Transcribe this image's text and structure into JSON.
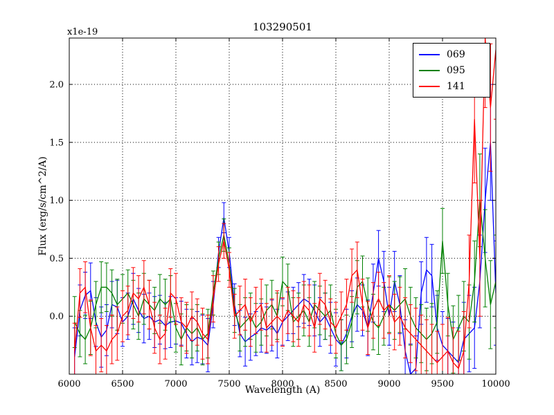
{
  "title": "103290501",
  "offset_label": "x1e-19",
  "axes": {
    "xlabel": "Wavelength (A)",
    "ylabel": "Flux (erg/s/cm^2/A)",
    "xlim": [
      6000,
      10000
    ],
    "ylim": [
      -0.5,
      2.4
    ],
    "xticks": [
      6000,
      6500,
      7000,
      7500,
      8000,
      8500,
      9000,
      9500,
      10000
    ],
    "xtick_labels": [
      "6000",
      "6500",
      "7000",
      "7500",
      "8000",
      "8500",
      "9000",
      "9500",
      "10000"
    ],
    "ytick_values": [
      0.0,
      0.5,
      1.0,
      1.5,
      2.0
    ],
    "ytick_labels": [
      "0.0",
      "0.5",
      "1.0",
      "1.5",
      "2.0"
    ]
  },
  "legend": {
    "position": "upper right",
    "entries": [
      {
        "label": "069",
        "color": "#0000ff"
      },
      {
        "label": "095",
        "color": "#008000"
      },
      {
        "label": "141",
        "color": "#ff0000"
      }
    ]
  },
  "chart_data": {
    "type": "line",
    "title": "103290501",
    "xlabel": "Wavelength (A)",
    "ylabel": "Flux (erg/s/cm^2/A)",
    "y_scale_factor": "1e-19",
    "xlim": [
      6000,
      10000
    ],
    "ylim": [
      -0.5,
      2.4
    ],
    "grid": true,
    "grid_style": "dotted",
    "error_bars": true,
    "legend_position": "upper right",
    "x": [
      6050,
      6100,
      6150,
      6200,
      6250,
      6300,
      6350,
      6400,
      6450,
      6500,
      6550,
      6600,
      6650,
      6700,
      6750,
      6800,
      6850,
      6900,
      6950,
      7000,
      7050,
      7100,
      7150,
      7200,
      7250,
      7300,
      7350,
      7400,
      7450,
      7500,
      7550,
      7600,
      7650,
      7700,
      7750,
      7800,
      7850,
      7900,
      7950,
      8000,
      8050,
      8100,
      8150,
      8200,
      8250,
      8300,
      8350,
      8400,
      8450,
      8500,
      8550,
      8600,
      8650,
      8700,
      8750,
      8800,
      8850,
      8900,
      8950,
      9000,
      9050,
      9100,
      9150,
      9200,
      9250,
      9300,
      9350,
      9400,
      9450,
      9500,
      9550,
      9600,
      9650,
      9700,
      9750,
      9800,
      9850,
      9900,
      9950,
      10000
    ],
    "series": [
      {
        "name": "069",
        "color": "#0000ff",
        "values": [
          -0.35,
          0.05,
          0.18,
          0.22,
          -0.05,
          -0.18,
          -0.12,
          0.1,
          0.08,
          -0.05,
          0.0,
          0.15,
          0.05,
          -0.02,
          0.0,
          -0.05,
          -0.03,
          -0.08,
          -0.05,
          -0.04,
          -0.06,
          -0.15,
          -0.22,
          -0.18,
          -0.2,
          -0.25,
          0.1,
          0.55,
          0.85,
          0.55,
          0.1,
          -0.15,
          -0.22,
          -0.18,
          -0.15,
          -0.1,
          -0.12,
          -0.08,
          -0.15,
          -0.05,
          0.0,
          0.05,
          0.1,
          0.15,
          0.12,
          0.05,
          -0.05,
          0.0,
          -0.1,
          -0.2,
          -0.25,
          -0.15,
          0.0,
          0.1,
          0.05,
          -0.1,
          0.2,
          0.5,
          0.3,
          0.0,
          0.3,
          0.1,
          -0.3,
          -0.5,
          -0.45,
          0.2,
          0.4,
          0.35,
          -0.1,
          -0.25,
          -0.3,
          -0.35,
          -0.4,
          -0.2,
          -0.15,
          -0.1,
          0.3,
          1.0,
          1.5,
          0.2
        ],
        "errors": [
          0.25,
          0.22,
          0.2,
          0.24,
          0.21,
          0.26,
          0.22,
          0.2,
          0.23,
          0.21,
          0.2,
          0.22,
          0.19,
          0.21,
          0.2,
          0.22,
          0.21,
          0.2,
          0.22,
          0.2,
          0.19,
          0.21,
          0.2,
          0.22,
          0.21,
          0.23,
          0.2,
          0.13,
          0.13,
          0.13,
          0.18,
          0.2,
          0.21,
          0.2,
          0.19,
          0.21,
          0.2,
          0.22,
          0.21,
          0.2,
          0.21,
          0.2,
          0.19,
          0.21,
          0.2,
          0.22,
          0.21,
          0.2,
          0.22,
          0.23,
          0.22,
          0.21,
          0.22,
          0.23,
          0.22,
          0.24,
          0.25,
          0.24,
          0.26,
          0.25,
          0.26,
          0.25,
          0.27,
          0.26,
          0.28,
          0.27,
          0.28,
          0.27,
          0.28,
          0.29,
          0.28,
          0.3,
          0.3,
          0.32,
          0.33,
          0.35,
          0.4,
          0.45,
          0.5,
          0.45
        ]
      },
      {
        "name": "095",
        "color": "#008000",
        "values": [
          -0.05,
          -0.15,
          -0.2,
          -0.1,
          0.1,
          0.25,
          0.25,
          0.2,
          0.1,
          0.15,
          0.2,
          0.1,
          0.0,
          0.15,
          0.1,
          0.05,
          0.15,
          0.1,
          0.15,
          -0.1,
          -0.2,
          -0.1,
          -0.15,
          -0.1,
          -0.2,
          -0.15,
          0.2,
          0.5,
          0.7,
          0.45,
          0.05,
          -0.1,
          -0.05,
          0.0,
          -0.1,
          -0.05,
          0.05,
          0.1,
          0.0,
          0.3,
          0.25,
          -0.05,
          0.0,
          0.05,
          -0.05,
          0.1,
          0.05,
          0.0,
          0.05,
          -0.15,
          -0.25,
          -0.2,
          -0.05,
          0.25,
          0.3,
          0.1,
          -0.05,
          -0.1,
          0.0,
          0.1,
          0.05,
          0.1,
          0.15,
          0.0,
          -0.1,
          -0.15,
          -0.2,
          -0.15,
          -0.05,
          0.65,
          0.1,
          -0.2,
          -0.1,
          0.0,
          -0.05,
          0.3,
          1.0,
          0.5,
          0.1,
          0.3
        ],
        "errors": [
          0.22,
          0.2,
          0.21,
          0.23,
          0.2,
          0.22,
          0.21,
          0.2,
          0.22,
          0.21,
          0.2,
          0.21,
          0.2,
          0.22,
          0.21,
          0.2,
          0.21,
          0.22,
          0.2,
          0.21,
          0.22,
          0.2,
          0.21,
          0.2,
          0.22,
          0.21,
          0.19,
          0.14,
          0.14,
          0.14,
          0.19,
          0.2,
          0.21,
          0.2,
          0.21,
          0.2,
          0.22,
          0.21,
          0.2,
          0.21,
          0.2,
          0.21,
          0.2,
          0.22,
          0.21,
          0.2,
          0.21,
          0.2,
          0.22,
          0.21,
          0.22,
          0.21,
          0.22,
          0.23,
          0.22,
          0.23,
          0.24,
          0.23,
          0.25,
          0.24,
          0.25,
          0.24,
          0.26,
          0.25,
          0.26,
          0.25,
          0.27,
          0.26,
          0.27,
          0.28,
          0.27,
          0.29,
          0.28,
          0.3,
          0.32,
          0.35,
          0.4,
          0.42,
          0.38,
          0.4
        ]
      },
      {
        "name": "141",
        "color": "#ff0000",
        "values": [
          -0.3,
          0.2,
          0.25,
          -0.1,
          -0.3,
          -0.25,
          -0.3,
          -0.2,
          -0.15,
          0.0,
          0.05,
          0.2,
          0.15,
          0.25,
          0.1,
          -0.1,
          -0.2,
          -0.15,
          0.2,
          0.15,
          -0.05,
          -0.1,
          0.0,
          -0.05,
          -0.15,
          -0.2,
          0.15,
          0.45,
          0.65,
          0.4,
          0.0,
          0.05,
          0.1,
          -0.05,
          0.05,
          0.1,
          -0.1,
          -0.05,
          0.0,
          -0.05,
          0.05,
          0.0,
          -0.05,
          0.1,
          0.05,
          -0.1,
          0.15,
          0.1,
          -0.05,
          -0.1,
          0.0,
          0.1,
          0.35,
          0.4,
          0.1,
          -0.1,
          0.05,
          0.15,
          0.05,
          0.1,
          -0.05,
          0.0,
          -0.1,
          -0.15,
          -0.2,
          -0.25,
          -0.3,
          -0.35,
          -0.4,
          -0.35,
          -0.3,
          -0.4,
          -0.45,
          -0.3,
          0.3,
          1.7,
          0.5,
          2.4,
          1.8,
          2.3
        ],
        "errors": [
          0.24,
          0.21,
          0.22,
          0.24,
          0.22,
          0.23,
          0.22,
          0.21,
          0.23,
          0.22,
          0.21,
          0.22,
          0.2,
          0.23,
          0.21,
          0.22,
          0.21,
          0.22,
          0.21,
          0.22,
          0.21,
          0.22,
          0.21,
          0.2,
          0.22,
          0.21,
          0.2,
          0.15,
          0.15,
          0.15,
          0.19,
          0.21,
          0.22,
          0.21,
          0.2,
          0.22,
          0.21,
          0.2,
          0.22,
          0.21,
          0.2,
          0.22,
          0.21,
          0.2,
          0.22,
          0.21,
          0.22,
          0.21,
          0.2,
          0.22,
          0.21,
          0.22,
          0.23,
          0.24,
          0.22,
          0.23,
          0.24,
          0.23,
          0.24,
          0.25,
          0.24,
          0.25,
          0.26,
          0.25,
          0.27,
          0.26,
          0.27,
          0.28,
          0.27,
          0.28,
          0.29,
          0.3,
          0.32,
          0.34,
          0.4,
          0.55,
          0.5,
          0.6,
          0.55,
          0.6
        ]
      }
    ]
  }
}
